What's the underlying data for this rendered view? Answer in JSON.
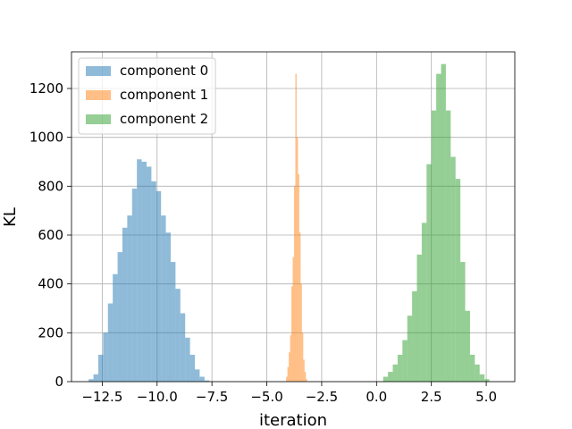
{
  "chart_data": {
    "type": "bar",
    "subtype": "histogram",
    "title": "",
    "xlabel": "iteration",
    "ylabel": "KL",
    "xlim": [
      -13.9,
      6.3
    ],
    "ylim": [
      0,
      1350
    ],
    "xticks": [
      -12.5,
      -10.0,
      -7.5,
      -5.0,
      -2.5,
      0.0,
      2.5,
      5.0
    ],
    "xtick_labels": [
      "−12.5",
      "−10.0",
      "−7.5",
      "−5.0",
      "−2.5",
      "0.0",
      "2.5",
      "5.0"
    ],
    "yticks": [
      0,
      200,
      400,
      600,
      800,
      1000,
      1200
    ],
    "ytick_labels": [
      "0",
      "200",
      "400",
      "600",
      "800",
      "1000",
      "1200"
    ],
    "grid": true,
    "legend_position": "top-left",
    "series": [
      {
        "name": "component 0",
        "color": "#1f77b4",
        "alpha": 0.5,
        "bins": [
          [
            -13.12,
            -12.9,
            10
          ],
          [
            -12.9,
            -12.68,
            30
          ],
          [
            -12.68,
            -12.46,
            110
          ],
          [
            -12.46,
            -12.24,
            200
          ],
          [
            -12.24,
            -12.02,
            320
          ],
          [
            -12.02,
            -11.8,
            440
          ],
          [
            -11.8,
            -11.58,
            530
          ],
          [
            -11.58,
            -11.36,
            630
          ],
          [
            -11.36,
            -11.14,
            680
          ],
          [
            -11.14,
            -10.92,
            790
          ],
          [
            -10.92,
            -10.7,
            910
          ],
          [
            -10.7,
            -10.48,
            900
          ],
          [
            -10.48,
            -10.26,
            880
          ],
          [
            -10.26,
            -10.04,
            820
          ],
          [
            -10.04,
            -9.82,
            780
          ],
          [
            -9.82,
            -9.6,
            680
          ],
          [
            -9.6,
            -9.38,
            610
          ],
          [
            -9.38,
            -9.16,
            490
          ],
          [
            -9.16,
            -8.94,
            380
          ],
          [
            -8.94,
            -8.72,
            280
          ],
          [
            -8.72,
            -8.5,
            180
          ],
          [
            -8.5,
            -8.28,
            110
          ],
          [
            -8.28,
            -8.06,
            50
          ],
          [
            -8.06,
            -7.84,
            20
          ],
          [
            -7.84,
            -7.62,
            5
          ]
        ]
      },
      {
        "name": "component 1",
        "color": "#ff7f0e",
        "alpha": 0.5,
        "bins": [
          [
            -4.12,
            -4.06,
            20
          ],
          [
            -4.06,
            -4.0,
            60
          ],
          [
            -4.0,
            -3.94,
            120
          ],
          [
            -3.94,
            -3.88,
            190
          ],
          [
            -3.88,
            -3.82,
            390
          ],
          [
            -3.82,
            -3.76,
            510
          ],
          [
            -3.76,
            -3.7,
            800
          ],
          [
            -3.7,
            -3.64,
            1260
          ],
          [
            -3.64,
            -3.58,
            1000
          ],
          [
            -3.58,
            -3.52,
            850
          ],
          [
            -3.52,
            -3.46,
            610
          ],
          [
            -3.46,
            -3.4,
            400
          ],
          [
            -3.4,
            -3.34,
            200
          ],
          [
            -3.34,
            -3.28,
            90
          ],
          [
            -3.28,
            -3.22,
            40
          ],
          [
            -3.22,
            -3.16,
            10
          ]
        ]
      },
      {
        "name": "component 2",
        "color": "#2ca02c",
        "alpha": 0.5,
        "bins": [
          [
            0.3,
            0.52,
            20
          ],
          [
            0.52,
            0.74,
            40
          ],
          [
            0.74,
            0.96,
            70
          ],
          [
            0.96,
            1.18,
            110
          ],
          [
            1.18,
            1.4,
            170
          ],
          [
            1.4,
            1.62,
            270
          ],
          [
            1.62,
            1.84,
            370
          ],
          [
            1.84,
            2.06,
            520
          ],
          [
            2.06,
            2.28,
            650
          ],
          [
            2.28,
            2.5,
            890
          ],
          [
            2.5,
            2.72,
            1110
          ],
          [
            2.72,
            2.94,
            1260
          ],
          [
            2.94,
            3.16,
            1300
          ],
          [
            3.16,
            3.38,
            1110
          ],
          [
            3.38,
            3.6,
            920
          ],
          [
            3.6,
            3.82,
            830
          ],
          [
            3.82,
            4.04,
            490
          ],
          [
            4.04,
            4.26,
            290
          ],
          [
            4.26,
            4.48,
            110
          ],
          [
            4.48,
            4.7,
            70
          ],
          [
            4.7,
            4.92,
            30
          ],
          [
            4.92,
            5.14,
            10
          ]
        ]
      }
    ]
  }
}
